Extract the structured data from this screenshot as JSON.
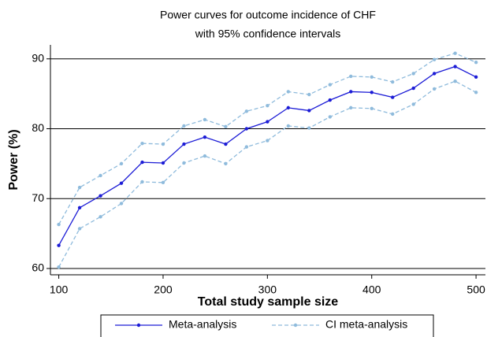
{
  "chart_data": {
    "type": "line",
    "title": [
      "Power curves for outcome incidence of CHF",
      "with 95% confidence intervals"
    ],
    "x_label": "Total study sample size",
    "y_label": "Power (%)",
    "x": [
      100,
      120,
      140,
      160,
      180,
      200,
      220,
      240,
      260,
      280,
      300,
      320,
      340,
      360,
      380,
      400,
      420,
      440,
      460,
      480,
      500
    ],
    "series": [
      {
        "name": "Meta-analysis",
        "color": "#1c1cd6",
        "dashed": false,
        "values": [
          63.3,
          68.7,
          70.4,
          72.2,
          75.2,
          75.1,
          77.8,
          78.8,
          77.8,
          80.0,
          81.0,
          83.0,
          82.6,
          84.1,
          85.3,
          85.2,
          84.5,
          85.8,
          87.9,
          88.9,
          87.4
        ]
      },
      {
        "name": "CI meta-analysis",
        "color": "#8fbbdc",
        "dashed": true,
        "upper": [
          66.3,
          71.6,
          73.3,
          75.0,
          77.9,
          77.8,
          80.4,
          81.3,
          80.3,
          82.5,
          83.3,
          85.3,
          84.9,
          86.3,
          87.5,
          87.4,
          86.7,
          87.9,
          89.9,
          90.8,
          89.5
        ],
        "lower": [
          60.2,
          65.7,
          67.4,
          69.3,
          72.4,
          72.3,
          75.1,
          76.1,
          75.0,
          77.4,
          78.3,
          80.4,
          80.1,
          81.7,
          83.0,
          82.9,
          82.1,
          83.5,
          85.7,
          86.8,
          85.2
        ]
      }
    ],
    "xlim": [
      92,
      509
    ],
    "xticks": [
      100,
      200,
      300,
      400,
      500
    ],
    "ylim": [
      59.1,
      92
    ],
    "yticks": [
      60,
      70,
      80,
      90
    ],
    "grid": true,
    "legend": "bottom"
  }
}
